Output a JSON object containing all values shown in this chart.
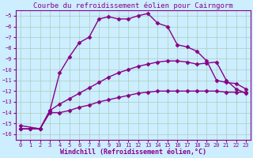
{
  "title": "Courbe du refroidissement éolien pour Cairngorm",
  "xlabel": "Windchill (Refroidissement éolien,°C)",
  "bg_color": "#cceeff",
  "grid_color": "#aaccbb",
  "line_color": "#880088",
  "xlim": [
    -0.5,
    23.5
  ],
  "ylim": [
    -16.5,
    -4.5
  ],
  "yticks": [
    -16,
    -15,
    -14,
    -13,
    -12,
    -11,
    -10,
    -9,
    -8,
    -7,
    -6,
    -5
  ],
  "xticks": [
    0,
    1,
    2,
    3,
    4,
    5,
    6,
    7,
    8,
    9,
    10,
    11,
    12,
    13,
    14,
    15,
    16,
    17,
    18,
    19,
    20,
    21,
    22,
    23
  ],
  "line1_x": [
    0,
    1,
    2,
    3,
    4,
    5,
    6,
    7,
    8,
    9,
    10,
    11,
    12,
    13,
    14,
    15,
    16,
    17,
    18,
    19,
    20,
    21,
    22,
    23
  ],
  "line1_y": [
    -15.5,
    -15.5,
    -15.5,
    -14.0,
    -14.0,
    -13.8,
    -13.5,
    -13.3,
    -13.0,
    -12.8,
    -12.6,
    -12.4,
    -12.2,
    -12.1,
    -12.0,
    -12.0,
    -12.0,
    -12.0,
    -12.0,
    -12.0,
    -12.0,
    -12.1,
    -12.1,
    -12.1
  ],
  "line2_x": [
    0,
    1,
    2,
    3,
    4,
    5,
    6,
    7,
    8,
    9,
    10,
    11,
    12,
    13,
    14,
    15,
    16,
    17,
    18,
    19,
    20,
    21,
    22,
    23
  ],
  "line2_y": [
    -15.5,
    -15.5,
    -15.5,
    -13.8,
    -13.2,
    -12.7,
    -12.2,
    -11.7,
    -11.2,
    -10.7,
    -10.3,
    -10.0,
    -9.7,
    -9.5,
    -9.3,
    -9.2,
    -9.2,
    -9.3,
    -9.5,
    -9.4,
    -9.3,
    -11.0,
    -11.8,
    -12.2
  ],
  "line3_x": [
    0,
    2,
    3,
    4,
    5,
    6,
    7,
    8,
    9,
    10,
    11,
    12,
    13,
    14,
    15,
    16,
    17,
    18,
    19,
    20,
    21,
    22,
    23
  ],
  "line3_y": [
    -15.2,
    -15.5,
    -13.8,
    -10.3,
    -8.8,
    -7.5,
    -7.0,
    -5.3,
    -5.1,
    -5.3,
    -5.3,
    -5.0,
    -4.8,
    -5.7,
    -6.0,
    -7.7,
    -7.9,
    -8.3,
    -9.2,
    -11.0,
    -11.2,
    -11.3,
    -11.8
  ],
  "marker": "D",
  "markersize": 2.5,
  "linewidth": 1.0,
  "title_fontsize": 6.5,
  "tick_fontsize": 5.0,
  "xlabel_fontsize": 6.0
}
